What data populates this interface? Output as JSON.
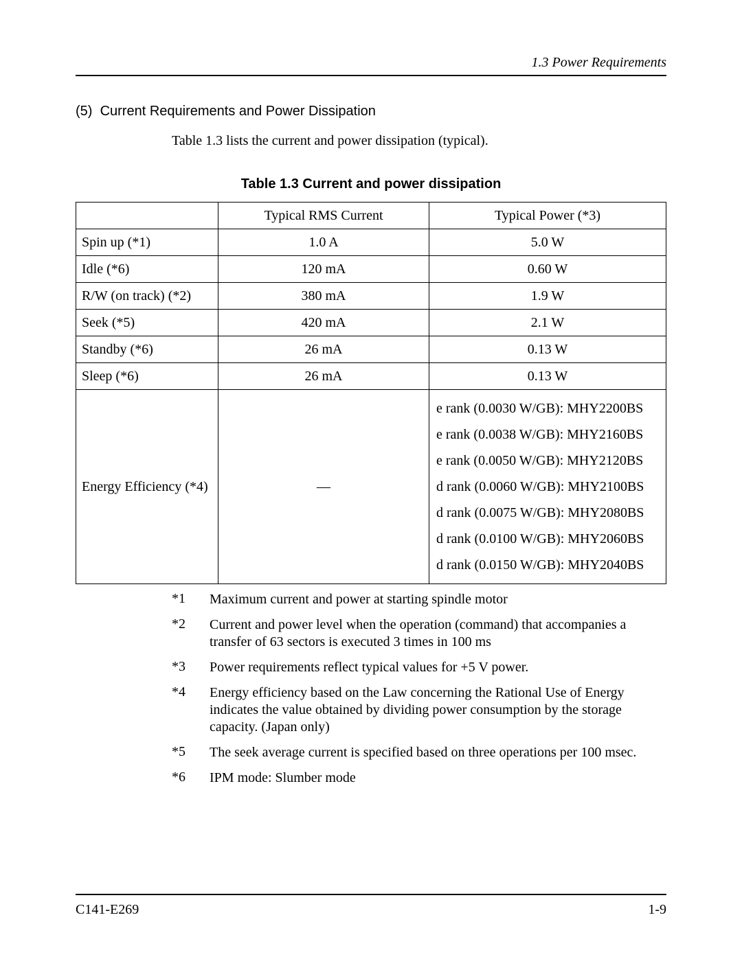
{
  "header": {
    "running": "1.3  Power Requirements"
  },
  "section": {
    "number": "(5)",
    "title": "Current Requirements and Power Dissipation",
    "intro": "Table 1.3 lists the current and power dissipation (typical)."
  },
  "table": {
    "caption": "Table 1.3  Current and power dissipation",
    "columns": {
      "blank": "",
      "rms": "Typical RMS Current",
      "power": "Typical Power (*3)"
    },
    "rows": [
      {
        "label": "Spin up (*1)",
        "rms": "1.0 A",
        "power": "5.0 W"
      },
      {
        "label": "Idle (*6)",
        "rms": "120 mA",
        "power": "0.60 W"
      },
      {
        "label": "R/W (on track) (*2)",
        "rms": "380 mA",
        "power": "1.9 W"
      },
      {
        "label": "Seek (*5)",
        "rms": "420 mA",
        "power": "2.1 W"
      },
      {
        "label": "Standby (*6)",
        "rms": "26 mA",
        "power": "0.13 W"
      },
      {
        "label": "Sleep (*6)",
        "rms": "26 mA",
        "power": "0.13 W"
      }
    ],
    "efficiency": {
      "label": "Energy Efficiency (*4)",
      "rms": "—",
      "lines": [
        "e rank (0.0030 W/GB): MHY2200BS",
        "e rank (0.0038 W/GB): MHY2160BS",
        "e rank (0.0050 W/GB): MHY2120BS",
        "d rank (0.0060 W/GB): MHY2100BS",
        "d rank (0.0075 W/GB): MHY2080BS",
        "d rank (0.0100 W/GB): MHY2060BS",
        "d rank (0.0150 W/GB): MHY2040BS"
      ]
    }
  },
  "notes": [
    {
      "marker": "*1",
      "text": "Maximum current and power at starting spindle motor"
    },
    {
      "marker": "*2",
      "text": "Current and power level when the operation (command) that accompanies a transfer of 63 sectors is executed 3 times in 100 ms"
    },
    {
      "marker": "*3",
      "text": "Power requirements reflect typical values for +5 V power."
    },
    {
      "marker": "*4",
      "text": "Energy efficiency based on the Law concerning the Rational Use of Energy indicates the value obtained by dividing power consumption by the storage capacity.  (Japan only)"
    },
    {
      "marker": "*5",
      "text": "The seek average current is specified based on three operations per 100 msec."
    },
    {
      "marker": "*6",
      "text": "IPM mode:  Slumber mode"
    }
  ],
  "footer": {
    "left": "C141-E269",
    "right": "1-9"
  }
}
